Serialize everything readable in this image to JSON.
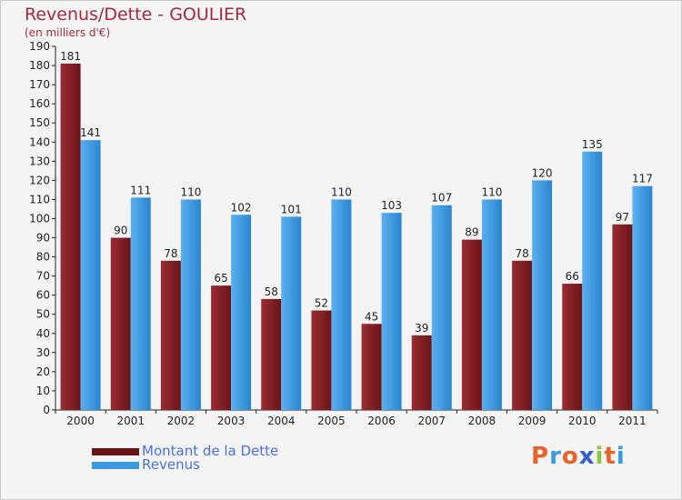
{
  "chart_data": {
    "type": "bar",
    "title": "Revenus/Dette - GOULIER",
    "subtitle": "(en milliers d'€)",
    "categories": [
      "2000",
      "2001",
      "2002",
      "2003",
      "2004",
      "2005",
      "2006",
      "2007",
      "2008",
      "2009",
      "2010",
      "2011"
    ],
    "series": [
      {
        "name": "Montant de la Dette",
        "color": "#7a1e24",
        "values": [
          181,
          90,
          78,
          65,
          58,
          52,
          45,
          39,
          89,
          78,
          66,
          97
        ]
      },
      {
        "name": "Revenus",
        "color": "#3a9be3",
        "values": [
          141,
          111,
          110,
          102,
          101,
          110,
          103,
          107,
          110,
          120,
          135,
          117
        ]
      }
    ],
    "ylim": [
      0,
      190
    ],
    "ytick_step": 10,
    "grid": false,
    "legend_position": "bottom-left"
  },
  "logo": {
    "text": "Proxiti",
    "colors": [
      "#e8622a",
      "#3a9be3",
      "#e8622a",
      "#2f5fd0",
      "#8bc53f",
      "#e8622a",
      "#3a9be3"
    ]
  }
}
